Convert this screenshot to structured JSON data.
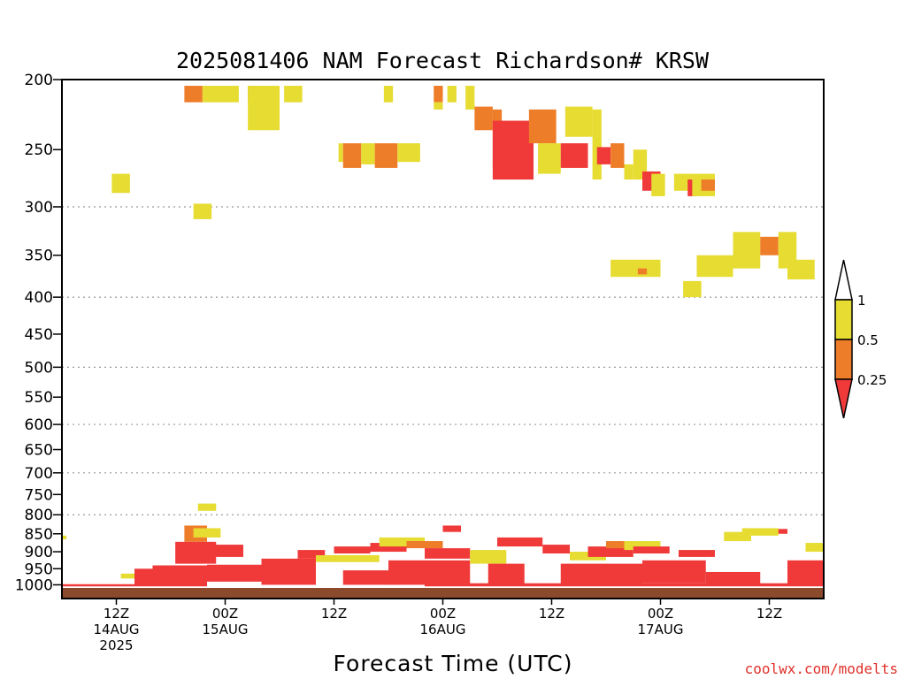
{
  "chart_data": {
    "type": "heatmap",
    "title": "2025081406 NAM Forecast Richardson# KRSW",
    "xlabel": "Forecast Time (UTC)",
    "ylabel": "",
    "credit": "coolwx.com/modelts",
    "y_scale": "log",
    "ylim": [
      200,
      1050
    ],
    "yticks": [
      200,
      250,
      300,
      350,
      400,
      450,
      500,
      550,
      600,
      650,
      700,
      750,
      800,
      850,
      900,
      950,
      1000
    ],
    "xlim_hours": [
      0,
      84
    ],
    "xticks": [
      {
        "hour": 6,
        "lines": [
          "12Z",
          "14AUG",
          "2025"
        ]
      },
      {
        "hour": 18,
        "lines": [
          "00Z",
          "15AUG"
        ]
      },
      {
        "hour": 30,
        "lines": [
          "12Z"
        ]
      },
      {
        "hour": 42,
        "lines": [
          "00Z",
          "16AUG"
        ]
      },
      {
        "hour": 54,
        "lines": [
          "12Z"
        ]
      },
      {
        "hour": 66,
        "lines": [
          "00Z",
          "17AUG"
        ]
      },
      {
        "hour": 78,
        "lines": [
          "12Z"
        ]
      }
    ],
    "grid_levels": [
      300,
      400,
      500,
      600,
      700,
      800
    ],
    "ground_level": 1010,
    "colorbar": {
      "labels": [
        "1",
        "0.5",
        "0.25"
      ],
      "bins": [
        {
          "range": [
            0.5,
            1
          ],
          "color": "#e6dc32"
        },
        {
          "range": [
            0.25,
            0.5
          ],
          "color": "#ee7d2a"
        },
        {
          "range": [
            null,
            0.25
          ],
          "color": "#f03a3a"
        }
      ],
      "extend_top_color": "#ffffff",
      "extend_bottom_color": "#f03a3a"
    },
    "colors": {
      "ri_lt_1": "#e6dc32",
      "ri_lt_05": "#ee7d2a",
      "ri_lt_025": "#f03a3a",
      "ground": "#8b4a2b"
    },
    "cells_note": "each cell: [start_hour, end_hour, top_pressure_hPa, bottom_pressure_hPa, class] where class 1 = Ri<1, 2 = Ri<0.5, 3 = Ri<0.25",
    "cells": [
      [
        13.5,
        15.5,
        204,
        215,
        2
      ],
      [
        15.5,
        19.5,
        204,
        215,
        1
      ],
      [
        20.5,
        22.5,
        204,
        215,
        2
      ],
      [
        20.5,
        24,
        204,
        235,
        1
      ],
      [
        24.5,
        26.5,
        204,
        215,
        1
      ],
      [
        35.5,
        36.5,
        204,
        215,
        1
      ],
      [
        41,
        42,
        204,
        215,
        2
      ],
      [
        41,
        42,
        215,
        220,
        1
      ],
      [
        42.5,
        43.5,
        204,
        215,
        1
      ],
      [
        44.5,
        45.5,
        204,
        220,
        1
      ],
      [
        45.5,
        47.5,
        218,
        235,
        2
      ],
      [
        47.5,
        48.5,
        220,
        265,
        2
      ],
      [
        47.5,
        52,
        228,
        275,
        3
      ],
      [
        51.5,
        54.5,
        220,
        245,
        2
      ],
      [
        52.5,
        55,
        245,
        270,
        1
      ],
      [
        55,
        58,
        245,
        265,
        3
      ],
      [
        55.5,
        58.5,
        218,
        240,
        1
      ],
      [
        58.5,
        59.5,
        220,
        275,
        1
      ],
      [
        59,
        60.5,
        248,
        262,
        3
      ],
      [
        60.5,
        62,
        245,
        265,
        2
      ],
      [
        62,
        63,
        262,
        275,
        1
      ],
      [
        63,
        64.5,
        250,
        275,
        1
      ],
      [
        64,
        66,
        268,
        285,
        3
      ],
      [
        65,
        66.5,
        270,
        290,
        1
      ],
      [
        67.5,
        69.5,
        270,
        285,
        1
      ],
      [
        69,
        70,
        275,
        290,
        3
      ],
      [
        69.5,
        72,
        270,
        290,
        1
      ],
      [
        70.5,
        72,
        275,
        285,
        2
      ],
      [
        30.5,
        31,
        245,
        260,
        1
      ],
      [
        31,
        33,
        245,
        265,
        2
      ],
      [
        33,
        34.5,
        245,
        262,
        1
      ],
      [
        34.5,
        37,
        245,
        265,
        2
      ],
      [
        37,
        39.5,
        245,
        260,
        1
      ],
      [
        5.5,
        7.5,
        270,
        287,
        1
      ],
      [
        14.5,
        16.5,
        297,
        312,
        1
      ],
      [
        74,
        77,
        325,
        365,
        1
      ],
      [
        77,
        79,
        330,
        350,
        2
      ],
      [
        79,
        81,
        325,
        365,
        1
      ],
      [
        70,
        74,
        350,
        375,
        1
      ],
      [
        80,
        83,
        355,
        378,
        1
      ],
      [
        60.5,
        66,
        355,
        375,
        1
      ],
      [
        63.5,
        64.5,
        365,
        372,
        2
      ],
      [
        68.5,
        70.5,
        380,
        400,
        1
      ],
      [
        13.5,
        16,
        828,
        872,
        2
      ],
      [
        12.5,
        17,
        872,
        935,
        3
      ],
      [
        14.5,
        17.5,
        835,
        860,
        1
      ],
      [
        16,
        20,
        880,
        915,
        3
      ],
      [
        10,
        16,
        940,
        1005,
        3
      ],
      [
        16,
        22,
        938,
        990,
        3
      ],
      [
        22,
        28,
        920,
        1000,
        3
      ],
      [
        8,
        13,
        950,
        1003,
        3
      ],
      [
        6.5,
        8,
        965,
        980,
        1
      ],
      [
        26,
        29,
        895,
        920,
        3
      ],
      [
        28,
        35,
        910,
        930,
        1
      ],
      [
        30,
        34,
        885,
        905,
        3
      ],
      [
        34,
        38,
        875,
        900,
        3
      ],
      [
        35,
        40,
        860,
        885,
        1
      ],
      [
        38,
        42,
        870,
        890,
        2
      ],
      [
        40,
        45,
        890,
        920,
        3
      ],
      [
        42,
        44,
        828,
        845,
        3
      ],
      [
        36,
        45,
        925,
        1000,
        3
      ],
      [
        31,
        37,
        955,
        1000,
        3
      ],
      [
        45,
        49,
        895,
        935,
        1
      ],
      [
        47,
        51,
        935,
        1002,
        3
      ],
      [
        48,
        53,
        860,
        885,
        3
      ],
      [
        53,
        56,
        880,
        905,
        3
      ],
      [
        56,
        60,
        900,
        925,
        1
      ],
      [
        58,
        63,
        885,
        915,
        3
      ],
      [
        60,
        64,
        870,
        890,
        2
      ],
      [
        62,
        66,
        870,
        895,
        1
      ],
      [
        63,
        67,
        885,
        905,
        3
      ],
      [
        55,
        64,
        935,
        1000,
        3
      ],
      [
        64,
        71,
        925,
        995,
        3
      ],
      [
        68,
        72,
        895,
        915,
        3
      ],
      [
        71,
        77,
        960,
        1003,
        3
      ],
      [
        76,
        80,
        837,
        850,
        3
      ],
      [
        73,
        76,
        845,
        870,
        1
      ],
      [
        75,
        79,
        835,
        855,
        1
      ],
      [
        80,
        84,
        925,
        1000,
        3
      ],
      [
        82,
        84,
        875,
        900,
        1
      ],
      [
        0,
        10,
        998,
        1005,
        3
      ],
      [
        40,
        84,
        995,
        1005,
        3
      ],
      [
        15,
        17,
        772,
        790,
        1
      ],
      [
        0,
        0.5,
        855,
        865,
        1
      ]
    ]
  }
}
